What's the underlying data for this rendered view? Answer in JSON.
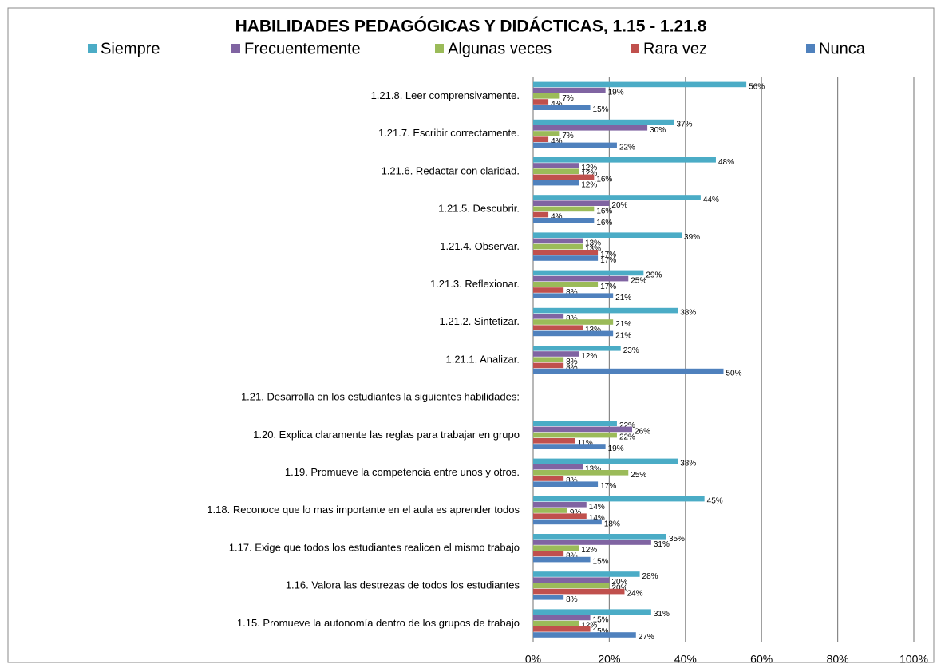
{
  "chart_data": {
    "type": "bar",
    "orientation": "horizontal",
    "title": "HABILIDADES PEDAGÓGICAS Y DIDÁCTICAS, 1.15 - 1.21.8",
    "categories": [
      "1.21.8.   Leer comprensivamente.",
      "1.21.7.   Escribir correctamente.",
      "1.21.6.   Redactar con claridad.",
      "1.21.5.   Descubrir.",
      "1.21.4.   Observar.",
      "1.21.3.   Reflexionar.",
      "1.21.2.   Sintetizar.",
      "1.21.1.   Analizar.",
      "1.21.  Desarrolla en los estudiantes la  siguientes  habilidades:",
      "1.20.   Explica claramente las reglas para trabajar en grupo",
      "1.19.   Promueve la competencia entre unos y otros.",
      "1.18.   Reconoce que lo mas importante en el aula es aprender todos",
      "1.17.   Exige que todos los estudiantes realicen el mismo trabajo",
      "1.16.   Valora las destrezas de todos los estudiantes",
      "1.15.   Promueve la autonomía dentro de los grupos de trabajo"
    ],
    "series": [
      {
        "name": "Siempre",
        "color": "#4bacc6",
        "values": [
          56,
          37,
          48,
          44,
          39,
          29,
          38,
          23,
          null,
          22,
          38,
          45,
          35,
          28,
          31
        ],
        "value_labels": [
          "56%",
          "37%",
          "48%",
          "44%",
          "39%",
          "29%",
          "38%",
          "23%",
          null,
          "22%",
          "38%",
          "45%",
          "35%",
          "28%",
          "31%"
        ]
      },
      {
        "name": "Frecuentemente",
        "color": "#8064a2",
        "values": [
          19,
          30,
          12,
          20,
          13,
          25,
          8,
          12,
          null,
          26,
          13,
          14,
          31,
          20,
          15
        ],
        "value_labels": [
          "19%",
          "30%",
          "12%",
          "20%",
          "13%",
          "25%",
          "8%",
          "12%",
          null,
          "26%",
          "13%",
          "14%",
          "31%",
          "20%",
          "15%"
        ]
      },
      {
        "name": "Algunas veces",
        "color": "#9bbb59",
        "values": [
          7,
          7,
          12,
          16,
          13,
          17,
          21,
          8,
          null,
          22,
          25,
          9,
          12,
          20,
          12
        ],
        "value_labels": [
          "7%",
          "7%",
          "12%",
          "16%",
          "13%",
          "17%",
          "21%",
          "8%",
          null,
          "22%",
          "25%",
          "9%",
          "12%",
          "20%",
          "12%"
        ]
      },
      {
        "name": "Rara vez",
        "color": "#c0504d",
        "values": [
          4,
          4,
          16,
          4,
          17,
          8,
          13,
          8,
          null,
          11,
          8,
          14,
          8,
          24,
          15
        ],
        "value_labels": [
          "4%",
          "4%",
          "16%",
          "4%",
          "17%",
          "8%",
          "13%",
          "8%",
          null,
          "11%",
          "8%",
          "14%",
          "8%",
          "24%",
          "15%"
        ]
      },
      {
        "name": "Nunca",
        "color": "#4f81bd",
        "values": [
          15,
          22,
          12,
          16,
          17,
          21,
          21,
          50,
          null,
          19,
          17,
          18,
          15,
          8,
          27
        ],
        "value_labels": [
          "15%",
          "22%",
          "12%",
          "16%",
          "17%",
          "21%",
          "21%",
          "50%",
          null,
          "19%",
          "17%",
          "18%",
          "15%",
          "8%",
          "27%"
        ]
      }
    ],
    "xlim": [
      0,
      100
    ],
    "xticks": [
      {
        "value": 0,
        "label": "0%"
      },
      {
        "value": 20,
        "label": "20%"
      },
      {
        "value": 40,
        "label": "40%"
      },
      {
        "value": 60,
        "label": "60%"
      },
      {
        "value": 80,
        "label": "80%"
      },
      {
        "value": 100,
        "label": "100%"
      }
    ],
    "grid": true,
    "legend": "top"
  }
}
